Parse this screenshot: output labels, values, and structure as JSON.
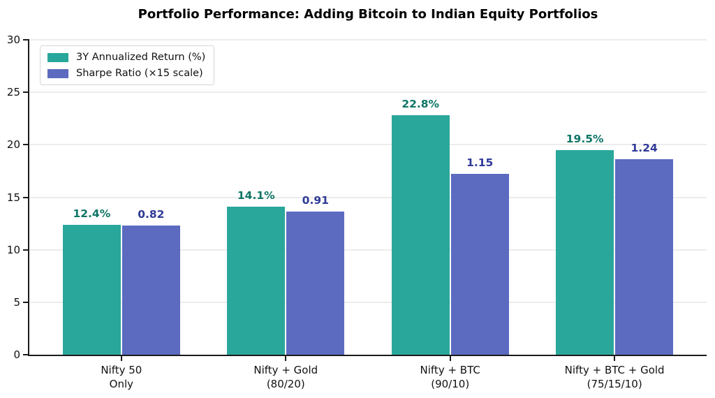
{
  "chart_data": {
    "type": "bar",
    "title": "Portfolio Performance: Adding Bitcoin to Indian Equity Portfolios",
    "categories": [
      [
        "Nifty 50",
        "Only"
      ],
      [
        "Nifty + Gold",
        "(80/20)"
      ],
      [
        "Nifty + BTC",
        "(90/10)"
      ],
      [
        "Nifty + BTC + Gold",
        "(75/15/10)"
      ]
    ],
    "series": [
      {
        "name": "3Y Annualized Return (%)",
        "color": "#2AA79B",
        "label_color": "#0E7566",
        "values": [
          12.4,
          14.1,
          22.8,
          19.5
        ],
        "bar_labels": [
          "12.4%",
          "14.1%",
          "22.8%",
          "19.5%"
        ]
      },
      {
        "name": "Sharpe Ratio (×15 scale)",
        "color": "#5C6BC0",
        "label_color": "#2F3A97",
        "values": [
          0.82,
          0.91,
          1.15,
          1.24
        ],
        "plotted_values": [
          12.3,
          13.65,
          17.25,
          18.6
        ],
        "bar_labels": [
          "0.82",
          "0.91",
          "1.15",
          "1.24"
        ]
      }
    ],
    "xlabel": "",
    "ylabel": "",
    "ylim": [
      0,
      30
    ],
    "yticks": [
      0,
      5,
      10,
      15,
      20,
      25,
      30
    ],
    "grid": "horizontal",
    "gridline_color": "#ececec",
    "axis_color": "#1b1b1b",
    "tick_label_color": "#111111",
    "background": "#ffffff",
    "legend_position": "upper-left"
  }
}
